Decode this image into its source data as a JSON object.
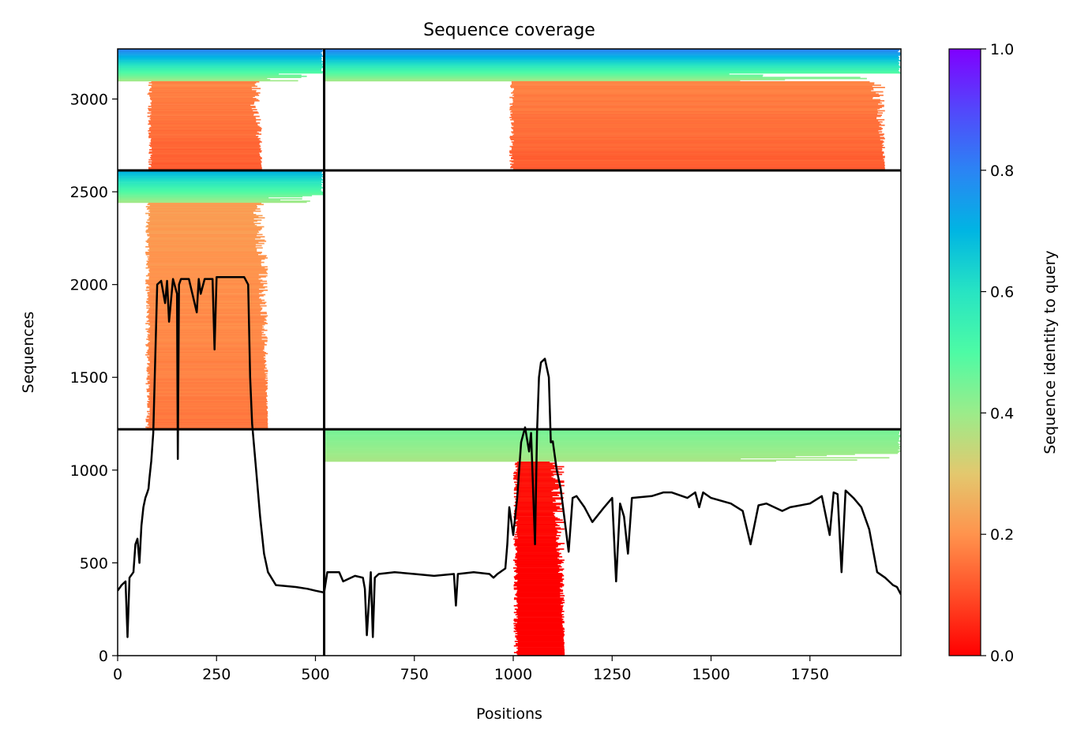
{
  "chart_data": {
    "type": "heatmap",
    "title": "Sequence coverage",
    "xlabel": "Positions",
    "ylabel": "Sequences",
    "xlim": [
      0,
      1980
    ],
    "ylim": [
      0,
      3270
    ],
    "xticks": [
      0,
      250,
      500,
      750,
      1000,
      1250,
      1500,
      1750
    ],
    "yticks": [
      0,
      500,
      1000,
      1500,
      2000,
      2500,
      3000
    ],
    "colorbar": {
      "label": "Sequence identity to query",
      "range": [
        0,
        1
      ],
      "ticks": [
        "0.0",
        "0.2",
        "0.4",
        "0.6",
        "0.8",
        "1.0"
      ],
      "colormap": "rainbow",
      "stops": [
        {
          "v": 0.0,
          "color": "#ff0000"
        },
        {
          "v": 0.1,
          "color": "#ff4d27"
        },
        {
          "v": 0.2,
          "color": "#ff934d"
        },
        {
          "v": 0.3,
          "color": "#e3c86e"
        },
        {
          "v": 0.4,
          "color": "#9bec8a"
        },
        {
          "v": 0.5,
          "color": "#4dfba5"
        },
        {
          "v": 0.6,
          "color": "#27e4c3"
        },
        {
          "v": 0.7,
          "color": "#00b5e3"
        },
        {
          "v": 0.8,
          "color": "#2b84f4"
        },
        {
          "v": 0.9,
          "color": "#5347fb"
        },
        {
          "v": 1.0,
          "color": "#8000ff"
        }
      ]
    },
    "chain_boundaries": {
      "x": [
        522
      ],
      "y": [
        1220,
        2615
      ]
    },
    "blocks": [
      {
        "name": "chain A alignments (top)",
        "x": [
          0,
          522
        ],
        "y": [
          2615,
          3270
        ],
        "x_coverage": [
          75,
          365
        ],
        "identity_top": 0.82,
        "identity_body": 0.18
      },
      {
        "name": "chain B alignments (top)",
        "x": [
          522,
          1980
        ],
        "y": [
          2615,
          3270
        ],
        "x_coverage": [
          990,
          1940
        ],
        "identity_top": 0.82,
        "identity_body": 0.18
      },
      {
        "name": "chain A alignments (middle)",
        "x": [
          0,
          522
        ],
        "y": [
          1220,
          2615
        ],
        "x_coverage": [
          70,
          380
        ],
        "identity_top": 0.72,
        "identity_body": 0.22
      },
      {
        "name": "chain B alignments (bottom)",
        "x": [
          522,
          1980
        ],
        "y": [
          0,
          1220
        ],
        "x_coverage": [
          1000,
          1130
        ],
        "identity_top": 0.45,
        "identity_body": 0.03
      }
    ],
    "series": [
      {
        "type": "line",
        "color": "#000000",
        "x": [
          0,
          10,
          20,
          25,
          30,
          40,
          45,
          50,
          55,
          60,
          65,
          70,
          75,
          78,
          80,
          85,
          90,
          100,
          110,
          120,
          125,
          130,
          140,
          150,
          152,
          155,
          160,
          180,
          200,
          205,
          210,
          220,
          240,
          245,
          250,
          260,
          280,
          300,
          320,
          330,
          335,
          340,
          350,
          360,
          370,
          380,
          400,
          450,
          480,
          500,
          522,
          530,
          560,
          570,
          600,
          620,
          625,
          630,
          640,
          645,
          650,
          660,
          700,
          750,
          800,
          850,
          855,
          860,
          900,
          940,
          950,
          960,
          980,
          985,
          990,
          1000,
          1010,
          1020,
          1030,
          1040,
          1045,
          1050,
          1055,
          1060,
          1065,
          1070,
          1080,
          1090,
          1095,
          1100,
          1110,
          1120,
          1140,
          1150,
          1160,
          1180,
          1200,
          1230,
          1250,
          1260,
          1270,
          1280,
          1290,
          1300,
          1350,
          1380,
          1400,
          1440,
          1460,
          1470,
          1480,
          1500,
          1550,
          1580,
          1600,
          1620,
          1640,
          1680,
          1700,
          1750,
          1780,
          1800,
          1810,
          1820,
          1830,
          1840,
          1860,
          1880,
          1900,
          1920,
          1940,
          1950,
          1960,
          1970,
          1980
        ],
        "values": [
          350,
          380,
          400,
          100,
          420,
          450,
          600,
          630,
          500,
          700,
          800,
          850,
          880,
          900,
          950,
          1050,
          1200,
          2000,
          2020,
          1900,
          2020,
          1800,
          2030,
          1950,
          1060,
          2000,
          2030,
          2030,
          1850,
          2030,
          1950,
          2030,
          2030,
          1650,
          2040,
          2040,
          2040,
          2040,
          2040,
          2000,
          1500,
          1250,
          1000,
          750,
          550,
          450,
          380,
          370,
          360,
          350,
          340,
          450,
          450,
          400,
          430,
          420,
          360,
          110,
          450,
          100,
          420,
          440,
          450,
          440,
          430,
          440,
          270,
          440,
          450,
          440,
          420,
          440,
          470,
          600,
          800,
          650,
          850,
          1150,
          1230,
          1100,
          1200,
          900,
          600,
          1200,
          1500,
          1580,
          1600,
          1500,
          1150,
          1155,
          1000,
          900,
          560,
          850,
          860,
          800,
          720,
          800,
          850,
          400,
          820,
          750,
          550,
          850,
          860,
          880,
          880,
          850,
          880,
          800,
          880,
          850,
          820,
          780,
          600,
          810,
          820,
          780,
          800,
          820,
          860,
          650,
          880,
          870,
          450,
          890,
          850,
          800,
          680,
          450,
          420,
          400,
          380,
          370,
          330
        ]
      }
    ]
  }
}
